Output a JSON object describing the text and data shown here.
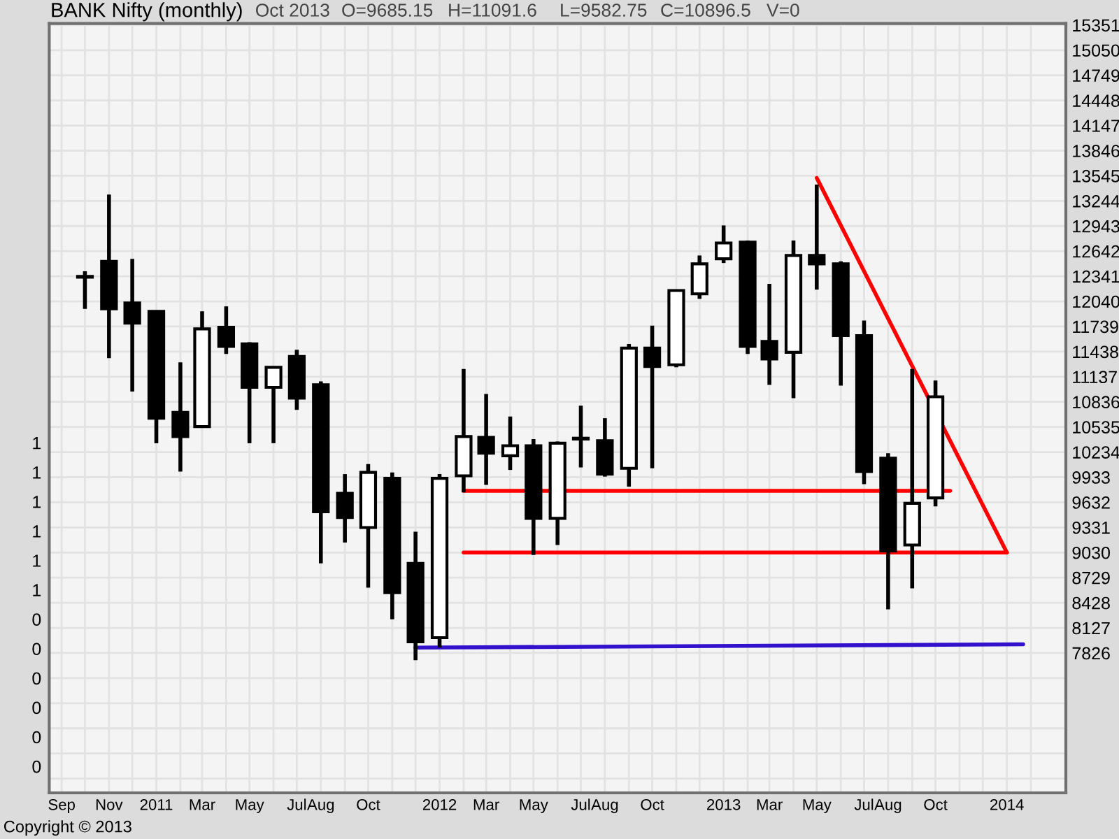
{
  "chart_data": {
    "type": "candlestick",
    "title": "BANK Nifty (monthly)",
    "annotations": [
      "Oct 2013",
      "O=9685.15",
      "H=11091.6",
      "L=9582.75",
      "C=10896.5",
      "V=0",
      "Copyright © 2013"
    ],
    "x": [
      "2010-10",
      "2010-11",
      "2010-12",
      "2011-01",
      "2011-02",
      "2011-03",
      "2011-04",
      "2011-05",
      "2011-06",
      "2011-07",
      "2011-08",
      "2011-09",
      "2011-10",
      "2011-11",
      "2011-12",
      "2012-01",
      "2012-02",
      "2012-03",
      "2012-04",
      "2012-05",
      "2012-06",
      "2012-07",
      "2012-08",
      "2012-09",
      "2012-10",
      "2012-11",
      "2012-12",
      "2013-01",
      "2013-02",
      "2013-03",
      "2013-04",
      "2013-05",
      "2013-06",
      "2013-07",
      "2013-08",
      "2013-09",
      "2013-10"
    ],
    "ohlc": [
      [
        12330,
        12400,
        11950,
        12340
      ],
      [
        12520,
        13320,
        11360,
        11950
      ],
      [
        12020,
        12550,
        10960,
        11780
      ],
      [
        11920,
        11930,
        10340,
        10640
      ],
      [
        10710,
        11310,
        10000,
        10420
      ],
      [
        10540,
        11920,
        10530,
        11710
      ],
      [
        11730,
        11980,
        11410,
        11500
      ],
      [
        11530,
        11550,
        10340,
        11010
      ],
      [
        11010,
        11260,
        10340,
        11250
      ],
      [
        11380,
        11460,
        10740,
        10880
      ],
      [
        11040,
        11080,
        8900,
        9520
      ],
      [
        9740,
        9970,
        9150,
        9450
      ],
      [
        9330,
        10090,
        8610,
        9990
      ],
      [
        9920,
        9990,
        8230,
        8550
      ],
      [
        8900,
        9280,
        7740,
        7960
      ],
      [
        8010,
        9970,
        7890,
        9920
      ],
      [
        9950,
        11230,
        9750,
        10420
      ],
      [
        10410,
        10930,
        9840,
        10220
      ],
      [
        10190,
        10660,
        10020,
        10310
      ],
      [
        10310,
        10390,
        9000,
        9440
      ],
      [
        9440,
        10360,
        9120,
        10340
      ],
      [
        10390,
        10790,
        10050,
        10400
      ],
      [
        10370,
        10640,
        9940,
        9970
      ],
      [
        10040,
        11530,
        9820,
        11480
      ],
      [
        11480,
        11750,
        10040,
        11260
      ],
      [
        11280,
        12180,
        11250,
        12170
      ],
      [
        12130,
        12590,
        12070,
        12490
      ],
      [
        12550,
        12950,
        12500,
        12740
      ],
      [
        12750,
        12770,
        11410,
        11500
      ],
      [
        11560,
        12250,
        11040,
        11350
      ],
      [
        11430,
        12770,
        10880,
        12590
      ],
      [
        12590,
        13440,
        12180,
        12490
      ],
      [
        12490,
        12520,
        11030,
        11630
      ],
      [
        11630,
        11810,
        9850,
        10000
      ],
      [
        10160,
        10220,
        8350,
        9050
      ],
      [
        9120,
        11230,
        8600,
        9620
      ],
      [
        9685.15,
        11091.6,
        9582.75,
        10896.5
      ]
    ],
    "series": [
      {
        "type": "line",
        "x": [
          "2012-02",
          "2013-10-20"
        ],
        "values": [
          9770,
          9770
        ],
        "color": "#ff0000"
      },
      {
        "type": "line",
        "x": [
          "2012-02",
          "2014-01"
        ],
        "values": [
          9030,
          9030
        ],
        "color": "#ff0000"
      },
      {
        "type": "line",
        "x": [
          "2013-05",
          "2014-01"
        ],
        "values": [
          13520,
          9030
        ],
        "color": "#ff0000"
      },
      {
        "type": "line",
        "x": [
          "2011-12",
          "2014-01-22"
        ],
        "values": [
          7890,
          7930
        ],
        "color": "#3311cc"
      }
    ],
    "xlim": [
      "2010-08-16",
      "2014-03-18"
    ],
    "xticks": [
      {
        "value": "2010-09",
        "label": "Sep"
      },
      {
        "value": "2010-10",
        "label": null
      },
      {
        "value": "2010-11",
        "label": "Nov"
      },
      {
        "value": "2010-12",
        "label": null
      },
      {
        "value": "2011-01",
        "label": "2011"
      },
      {
        "value": "2011-02",
        "label": null
      },
      {
        "value": "2011-03",
        "label": "Mar"
      },
      {
        "value": "2011-04",
        "label": null
      },
      {
        "value": "2011-05",
        "label": "May"
      },
      {
        "value": "2011-06",
        "label": null
      },
      {
        "value": "2011-07",
        "label": "Jul"
      },
      {
        "value": "2011-08",
        "label": "Aug"
      },
      {
        "value": "2011-09",
        "label": null
      },
      {
        "value": "2011-10",
        "label": "Oct"
      },
      {
        "value": "2011-11",
        "label": null
      },
      {
        "value": "2011-12",
        "label": null
      },
      {
        "value": "2012-01",
        "label": "2012"
      },
      {
        "value": "2012-02",
        "label": null
      },
      {
        "value": "2012-03",
        "label": "Mar"
      },
      {
        "value": "2012-04",
        "label": null
      },
      {
        "value": "2012-05",
        "label": "May"
      },
      {
        "value": "2012-06",
        "label": null
      },
      {
        "value": "2012-07",
        "label": "Jul"
      },
      {
        "value": "2012-08",
        "label": "Aug"
      },
      {
        "value": "2012-09",
        "label": null
      },
      {
        "value": "2012-10",
        "label": "Oct"
      },
      {
        "value": "2012-11",
        "label": null
      },
      {
        "value": "2012-12",
        "label": null
      },
      {
        "value": "2013-01",
        "label": "2013"
      },
      {
        "value": "2013-02",
        "label": null
      },
      {
        "value": "2013-03",
        "label": "Mar"
      },
      {
        "value": "2013-04",
        "label": null
      },
      {
        "value": "2013-05",
        "label": "May"
      },
      {
        "value": "2013-06",
        "label": null
      },
      {
        "value": "2013-07",
        "label": "Jul"
      },
      {
        "value": "2013-08",
        "label": "Aug"
      },
      {
        "value": "2013-09",
        "label": null
      },
      {
        "value": "2013-10",
        "label": "Oct"
      },
      {
        "value": "2013-11",
        "label": null
      },
      {
        "value": "2013-12",
        "label": null
      },
      {
        "value": "2014-01",
        "label": "2014"
      },
      {
        "value": "2014-02",
        "label": null
      }
    ],
    "ylim": [
      6150,
      15370
    ],
    "yticks": [
      15351,
      15050,
      14749,
      14448,
      14147,
      13846,
      13545,
      13244,
      12943,
      12642,
      12341,
      12040,
      11739,
      11438,
      11137,
      10836,
      10535,
      10234,
      9933,
      9632,
      9331,
      9030,
      8729,
      8428,
      8127,
      7826,
      {
        "value": 7525,
        "label": null
      },
      {
        "value": 7224,
        "label": null
      },
      {
        "value": 6923,
        "label": null
      },
      {
        "value": 6622,
        "label": null
      },
      {
        "value": 6321,
        "label": null
      }
    ],
    "y2_categories": [
      "1",
      "1",
      "1",
      "1",
      "1",
      "1",
      "0",
      "0",
      "0",
      "0",
      "0",
      "0"
    ],
    "grid": true
  }
}
